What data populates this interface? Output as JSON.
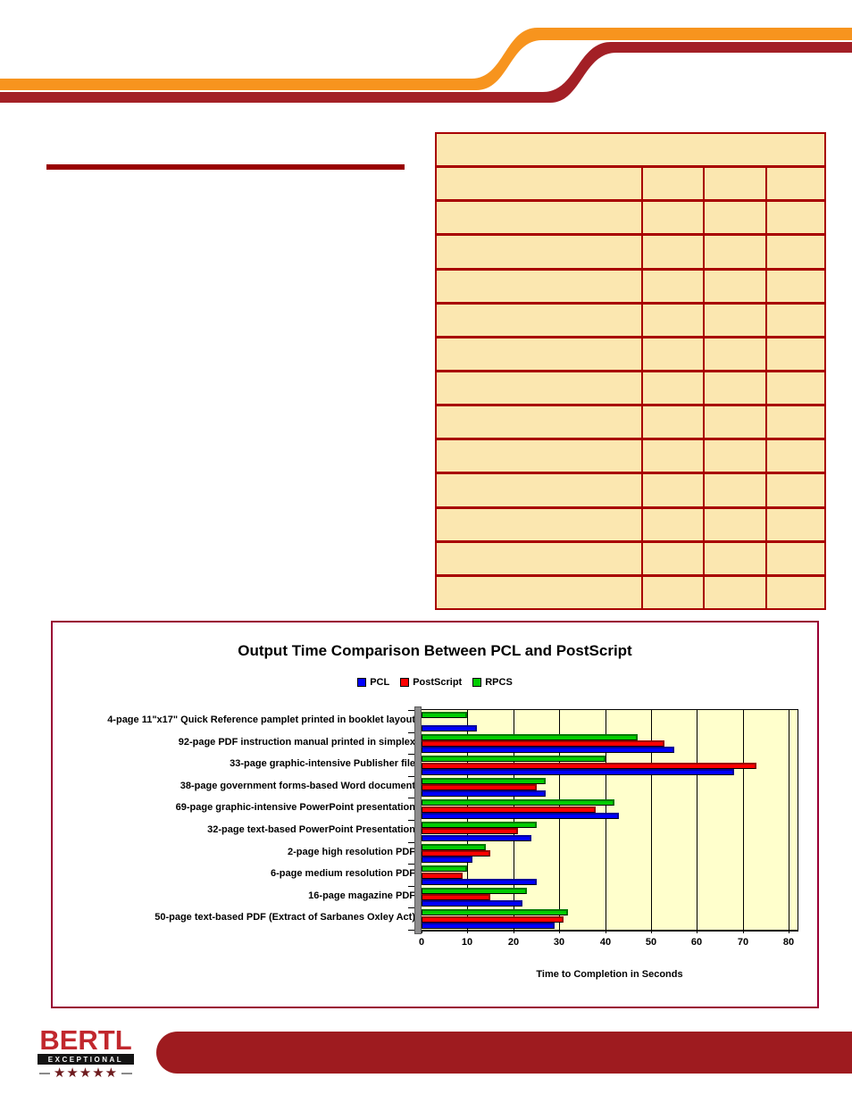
{
  "colors": {
    "swoosh_orange": "#F7941E",
    "swoosh_dark_red": "#A32026",
    "title_rule_red": "#990000",
    "table_fill": "#FBE7B0",
    "table_border": "#A80000",
    "chart_border": "#990033",
    "plot_background": "#FFFFCC",
    "footer_bar_red": "#9E1B1F",
    "logo_red": "#C1272D",
    "logo_star_red": "#6E1B1E"
  },
  "table": {
    "header_rows": 1,
    "data_rows": 13,
    "columns": 4,
    "note": "table is empty - no visible text in any cell"
  },
  "chart_data": {
    "type": "bar",
    "orientation": "horizontal-3d",
    "title": "Output Time Comparison Between PCL and PostScript",
    "xlabel": "Time to Completion in Seconds",
    "xlim": [
      0,
      80
    ],
    "xticks": [
      0,
      10,
      20,
      30,
      40,
      50,
      60,
      70,
      80
    ],
    "grid": true,
    "legend_position": "top-center",
    "legend_order": [
      "PCL",
      "PostScript",
      "RPCS"
    ],
    "categories": [
      "4-page 11\"x17\" Quick Reference pamplet printed in booklet layout",
      "92-page PDF instruction manual printed in simplex",
      "33-page graphic-intensive Publisher file",
      "38-page government forms-based Word document",
      "69-page graphic-intensive PowerPoint presentation",
      "32-page text-based PowerPoint Presentation",
      "2-page high resolution PDF",
      "6-page medium resolution PDF",
      "16-page magazine PDF",
      "50-page text-based PDF (Extract of Sarbanes Oxley Act)"
    ],
    "series": [
      {
        "name": "RPCS",
        "color": "#00CC00",
        "shade": "#007700",
        "values": [
          10,
          47,
          40,
          27,
          42,
          25,
          14,
          10,
          23,
          32
        ]
      },
      {
        "name": "PostScript",
        "color": "#FF0000",
        "shade": "#990000",
        "values": [
          null,
          53,
          73,
          25,
          38,
          21,
          15,
          9,
          15,
          31
        ]
      },
      {
        "name": "PCL",
        "color": "#0000FF",
        "shade": "#000099",
        "values": [
          12,
          55,
          68,
          27,
          43,
          24,
          11,
          25,
          22,
          29
        ]
      }
    ]
  },
  "footer": {
    "logo": {
      "brand": "BERTL",
      "sub": "EXCEPTIONAL",
      "stars": "★★★★★"
    }
  }
}
